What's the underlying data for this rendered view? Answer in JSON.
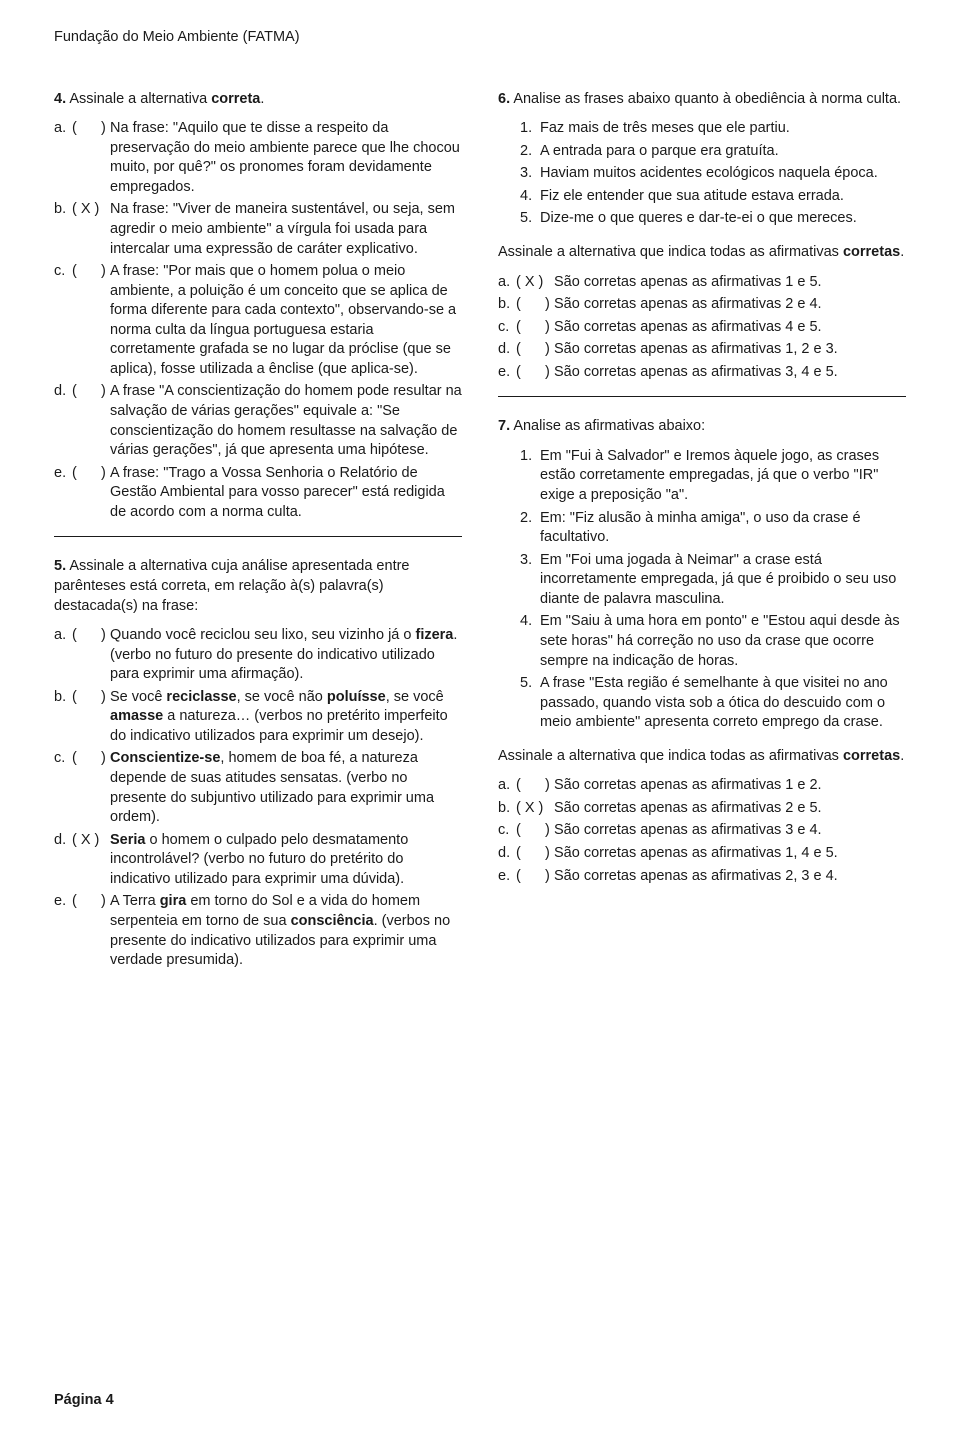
{
  "header": "Fundação do Meio Ambiente (FATMA)",
  "footer": "Página 4",
  "q4": {
    "num": "4.",
    "stem_pre": " Assinale a alternativa ",
    "stem_bold": "correta",
    "stem_post": ".",
    "opts": [
      {
        "l": "a.",
        "p": "(      )",
        "text": "Na frase: \"Aquilo que te disse a respeito da preservação do meio ambiente parece que lhe chocou muito, por quê?\" os pronomes foram devidamente empregados."
      },
      {
        "l": "b.",
        "p": "( X )",
        "text": "Na frase: \"Viver de maneira sustentável, ou seja, sem agredir o meio ambiente\" a vírgula foi usada para intercalar uma expressão de caráter explicativo."
      },
      {
        "l": "c.",
        "p": "(      )",
        "text": "A frase: \"Por mais que o homem polua o meio ambiente, a poluição é um conceito que se aplica de forma diferente para cada contexto\", observando-se a norma culta da língua portuguesa estaria corretamente grafada se no lugar da próclise (que se aplica), fosse utilizada a ênclise (que aplica-se)."
      },
      {
        "l": "d.",
        "p": "(      )",
        "text": "A frase \"A conscientização do homem pode resultar na salvação de várias gerações\" equivale a: \"Se conscientização do homem resultasse na salvação de várias gerações\", já que apresenta uma hipótese."
      },
      {
        "l": "e.",
        "p": "(      )",
        "text": "A frase: \"Trago a Vossa Senhoria o Relatório de Gestão Ambiental para vosso parecer\" está redigida de acordo com a norma culta."
      }
    ]
  },
  "q5": {
    "num": "5.",
    "stem": " Assinale a alternativa cuja análise apresentada entre parênteses está correta, em relação à(s) palavra(s) destacada(s) na frase:",
    "opts": [
      {
        "l": "a.",
        "p": "(      )",
        "pre": "Quando você reciclou seu lixo, seu vizinho já o ",
        "b1": "fizera",
        "post": ". (verbo no futuro do presente do indicativo utilizado para exprimir uma afirmação)."
      },
      {
        "l": "b.",
        "p": "(      )",
        "pre": "Se você ",
        "b1": "reciclasse",
        "mid1": ", se você não ",
        "b2": "poluísse",
        "mid2": ", se você ",
        "b3": "amasse",
        "post": " a natureza… (verbos no pretérito imperfeito do indicativo utilizados para exprimir um desejo)."
      },
      {
        "l": "c.",
        "p": "(      )",
        "b1": "Conscientize-se",
        "post": ", homem de boa fé, a natureza depende de suas atitudes sensatas. (verbo no presente do subjuntivo utilizado para exprimir uma ordem)."
      },
      {
        "l": "d.",
        "p": "( X )",
        "b1": "Seria",
        "post": " o homem o culpado pelo desmatamento incontrolável? (verbo no futuro do pretérito do indicativo utilizado para exprimir uma dúvida)."
      },
      {
        "l": "e.",
        "p": "(      )",
        "pre": "A Terra ",
        "b1": "gira",
        "mid1": " em torno do Sol e a vida do homem serpenteia em torno de sua ",
        "b2": "consciência",
        "post": ". (verbos no presente do indicativo utilizados para exprimir uma verdade presumida)."
      }
    ]
  },
  "q6": {
    "num": "6.",
    "stem": " Analise as frases abaixo quanto à obediência à norma culta.",
    "items": [
      "Faz mais de três meses que ele partiu.",
      "A entrada para o parque era gratuíta.",
      "Haviam muitos acidentes ecológicos naquela época.",
      "Fiz ele entender que sua atitude estava errada.",
      "Dize-me o que queres e dar-te-ei o que mereces."
    ],
    "mid_pre": "Assinale a alternativa que indica todas as afirmativas ",
    "mid_bold": "corretas",
    "mid_post": ".",
    "opts": [
      {
        "l": "a.",
        "p": "( X )",
        "text": "São corretas apenas as afirmativas 1 e 5."
      },
      {
        "l": "b.",
        "p": "(      )",
        "text": "São corretas apenas as afirmativas 2 e 4."
      },
      {
        "l": "c.",
        "p": "(      )",
        "text": "São corretas apenas as afirmativas 4 e 5."
      },
      {
        "l": "d.",
        "p": "(      )",
        "text": "São corretas apenas as afirmativas 1, 2 e 3."
      },
      {
        "l": "e.",
        "p": "(      )",
        "text": "São corretas apenas as afirmativas 3, 4 e 5."
      }
    ]
  },
  "q7": {
    "num": "7.",
    "stem": " Analise as afirmativas abaixo:",
    "items": [
      "Em \"Fui à Salvador\" e Iremos àquele jogo, as crases estão corretamente empregadas, já que o verbo \"IR\" exige a preposição \"a\".",
      "Em: \"Fiz alusão à minha amiga\", o uso da crase é facultativo.",
      "Em \"Foi uma jogada à Neimar\" a crase está incorretamente empregada, já que é proibido o seu uso diante de palavra masculina.",
      "Em \"Saiu à uma hora em ponto\" e \"Estou aqui desde às sete horas\" há correção no uso da crase que ocorre sempre na indicação de horas.",
      "A frase \"Esta região é semelhante à que visitei no ano passado, quando vista sob a ótica do descuido com o meio ambiente\" apresenta correto emprego da crase."
    ],
    "mid_pre": "Assinale a alternativa que indica todas as afirmativas ",
    "mid_bold": "corretas",
    "mid_post": ".",
    "opts": [
      {
        "l": "a.",
        "p": "(      )",
        "text": "São corretas apenas as afirmativas 1 e 2."
      },
      {
        "l": "b.",
        "p": "( X )",
        "text": "São corretas apenas as afirmativas 2 e 5."
      },
      {
        "l": "c.",
        "p": "(      )",
        "text": "São corretas apenas as afirmativas 3 e 4."
      },
      {
        "l": "d.",
        "p": "(      )",
        "text": "São corretas apenas as afirmativas 1, 4 e 5."
      },
      {
        "l": "e.",
        "p": "(      )",
        "text": "São corretas apenas as afirmativas 2, 3 e 4."
      }
    ]
  }
}
